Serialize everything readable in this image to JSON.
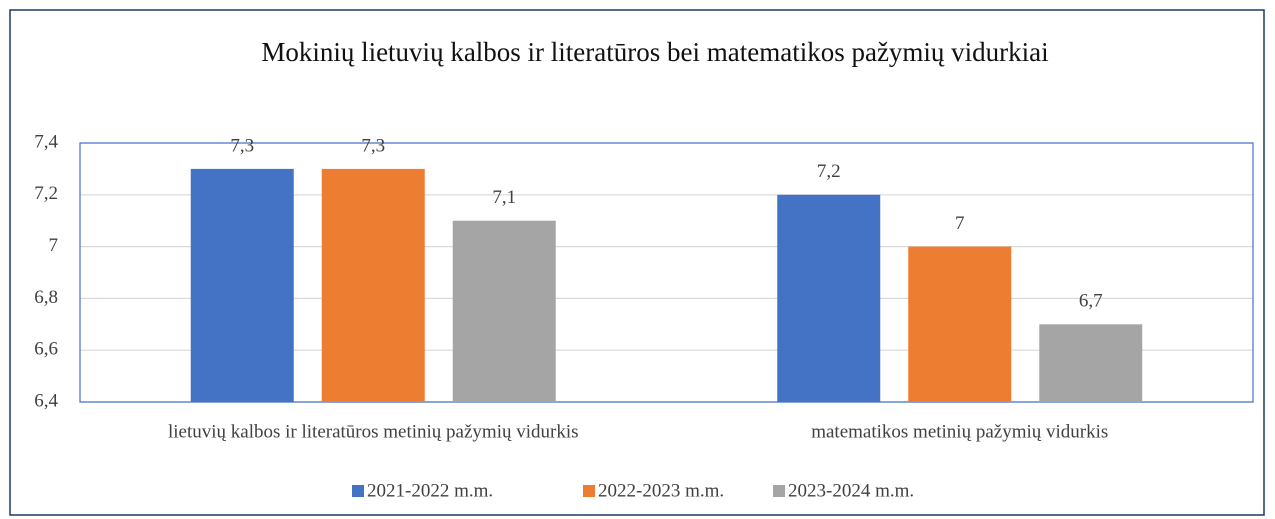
{
  "chart_data": {
    "type": "bar",
    "title": "Mokinių lietuvių kalbos ir literatūros bei matematikos  pažymių vidurkiai",
    "categories": [
      "lietuvių kalbos ir literatūros metinių pažymių vidurkis",
      "matematikos metinių pažymių vidurkis"
    ],
    "series": [
      {
        "name": "2021-2022 m.m.",
        "color": "#4472c4",
        "values": [
          7.3,
          7.2
        ],
        "value_labels": [
          "7,3",
          "7,2"
        ]
      },
      {
        "name": "2022-2023 m.m.",
        "color": "#ed7d31",
        "values": [
          7.3,
          7
        ],
        "value_labels": [
          "7,3",
          "7"
        ]
      },
      {
        "name": "2023-2024 m.m.",
        "color": "#a5a5a5",
        "values": [
          7.1,
          6.7
        ],
        "value_labels": [
          "7,1",
          "6,7"
        ]
      }
    ],
    "ylim": [
      6.4,
      7.4
    ],
    "yticks": [
      {
        "value": 6.4,
        "label": "6,4"
      },
      {
        "value": 6.6,
        "label": "6,6"
      },
      {
        "value": 6.8,
        "label": "6,8"
      },
      7,
      {
        "value": 7.2,
        "label": "7,2"
      },
      {
        "value": 7.4,
        "label": "7,4"
      }
    ],
    "grid": true,
    "legend": "bottom"
  }
}
